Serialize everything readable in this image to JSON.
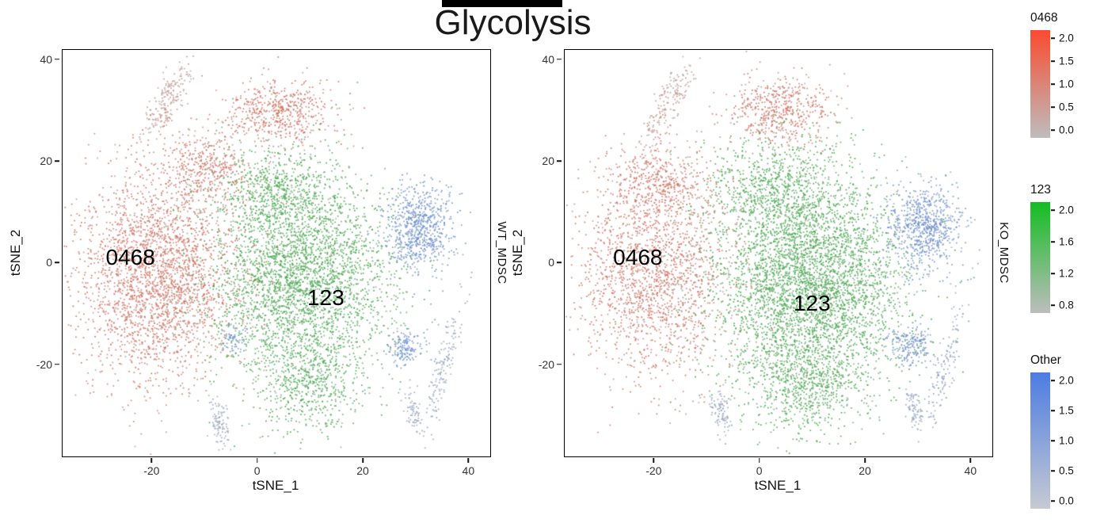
{
  "title": "Glycolysis",
  "point_colors": {
    "red": "#dc5f4b",
    "green": "#2ea636",
    "blue": "#5b87d8",
    "low_gray": "#b4b4b4"
  },
  "chart_data": [
    {
      "type": "scatter",
      "panel_label": "WT_MDSC",
      "xlabel": "tSNE_1",
      "ylabel": "tSNE_2",
      "xlim": [
        -37,
        44
      ],
      "ylim": [
        -38,
        42
      ],
      "xticks": [
        -20,
        0,
        20,
        40
      ],
      "yticks": [
        -20,
        0,
        20,
        40
      ],
      "annotations": [
        {
          "text": "0468",
          "x": -24,
          "y": 1
        },
        {
          "text": "123",
          "x": 13,
          "y": -7
        }
      ],
      "clusters": [
        {
          "name": "0468",
          "color": "#dc5f4b",
          "blobs": [
            {
              "cx": -19,
              "cy": -2,
              "sx": 7.5,
              "sy": 10.5,
              "n": 2500
            },
            {
              "cx": -10,
              "cy": 19,
              "sx": 4,
              "sy": 3.5,
              "n": 400
            },
            {
              "cx": 4,
              "cy": 30,
              "sx": 5,
              "sy": 3.2,
              "n": 550
            },
            {
              "cx": -17.5,
              "cy": 31.5,
              "sx": 1.3,
              "sy": 4.5,
              "angle": -28,
              "n": 200,
              "t": [
                0.1,
                0.5
              ]
            },
            {
              "cx": -19,
              "cy": -2,
              "sx": 11,
              "sy": 14,
              "n": 180,
              "t": [
                0.25,
                0.7
              ]
            }
          ]
        },
        {
          "name": "123",
          "color": "#2ea636",
          "blobs": [
            {
              "cx": 8,
              "cy": -3,
              "sx": 8.5,
              "sy": 10,
              "n": 3200
            },
            {
              "cx": 3,
              "cy": 14,
              "sx": 6,
              "sy": 4.5,
              "n": 600
            },
            {
              "cx": 9,
              "cy": -24,
              "sx": 4.5,
              "sy": 4.5,
              "n": 500
            }
          ]
        },
        {
          "name": "Other",
          "color": "#5b87d8",
          "blobs": [
            {
              "cx": 30.5,
              "cy": 7,
              "sx": 3.2,
              "sy": 4.3,
              "n": 700
            },
            {
              "cx": 28,
              "cy": -16.5,
              "sx": 1.7,
              "sy": 1.8,
              "n": 150
            },
            {
              "cx": 35,
              "cy": -20,
              "sx": 1.0,
              "sy": 6.5,
              "angle": -14,
              "n": 150,
              "t": [
                0.15,
                0.6
              ]
            },
            {
              "cx": 29.5,
              "cy": -29,
              "sx": 0.8,
              "sy": 2.2,
              "angle": 12,
              "n": 70,
              "t": [
                0.15,
                0.5
              ]
            },
            {
              "cx": -5,
              "cy": -15,
              "sx": 1.2,
              "sy": 1.4,
              "n": 60
            },
            {
              "cx": -7.5,
              "cy": -31.5,
              "sx": 0.9,
              "sy": 2.6,
              "angle": 10,
              "n": 100,
              "t": [
                0.1,
                0.45
              ]
            }
          ]
        }
      ]
    },
    {
      "type": "scatter",
      "panel_label": "KO_MDSC",
      "xlabel": "tSNE_1",
      "ylabel": "tSNE_2",
      "xlim": [
        -37,
        44
      ],
      "ylim": [
        -38,
        42
      ],
      "xticks": [
        -20,
        0,
        20,
        40
      ],
      "yticks": [
        -20,
        0,
        20,
        40
      ],
      "annotations": [
        {
          "text": "0468",
          "x": -23,
          "y": 1
        },
        {
          "text": "123",
          "x": 10,
          "y": -8
        }
      ],
      "clusters": [
        {
          "name": "0468",
          "color": "#dc5f4b",
          "blobs": [
            {
              "cx": -20,
              "cy": -2,
              "sx": 7,
              "sy": 10,
              "n": 1600
            },
            {
              "cx": -19,
              "cy": 16,
              "sx": 4.5,
              "sy": 3.5,
              "n": 400
            },
            {
              "cx": 4,
              "cy": 30,
              "sx": 5,
              "sy": 3.2,
              "n": 520
            },
            {
              "cx": -17.5,
              "cy": 31.5,
              "sx": 1.3,
              "sy": 4.5,
              "angle": -28,
              "n": 180,
              "t": [
                0.1,
                0.5
              ]
            },
            {
              "cx": -19,
              "cy": -4,
              "sx": 10,
              "sy": 13,
              "n": 200,
              "t": [
                0.25,
                0.7
              ]
            }
          ]
        },
        {
          "name": "123",
          "color": "#2ea636",
          "blobs": [
            {
              "cx": 9,
              "cy": -4,
              "sx": 9,
              "sy": 11,
              "n": 4200
            },
            {
              "cx": 3,
              "cy": 15,
              "sx": 6.5,
              "sy": 5,
              "n": 700
            },
            {
              "cx": 9,
              "cy": -24,
              "sx": 5,
              "sy": 4.5,
              "n": 550
            }
          ]
        },
        {
          "name": "Other",
          "color": "#5b87d8",
          "blobs": [
            {
              "cx": 31,
              "cy": 7,
              "sx": 3.3,
              "sy": 4.2,
              "n": 720
            },
            {
              "cx": 28.5,
              "cy": -16,
              "sx": 1.9,
              "sy": 2,
              "n": 190
            },
            {
              "cx": 35,
              "cy": -20,
              "sx": 1.0,
              "sy": 6.5,
              "angle": -14,
              "n": 140,
              "t": [
                0.15,
                0.6
              ]
            },
            {
              "cx": 29,
              "cy": -28.5,
              "sx": 0.8,
              "sy": 2.2,
              "angle": 12,
              "n": 80,
              "t": [
                0.15,
                0.5
              ]
            },
            {
              "cx": -7.5,
              "cy": -29,
              "sx": 0.9,
              "sy": 2.4,
              "angle": 10,
              "n": 90,
              "t": [
                0.1,
                0.45
              ]
            }
          ]
        }
      ]
    }
  ],
  "colorbars": [
    {
      "label": "0468",
      "top_color": "#fa4b30",
      "bottom_color": "#bdbdbd",
      "ticks": [
        "2.0",
        "1.5",
        "1.0",
        "0.5",
        "0.0"
      ]
    },
    {
      "label": "123",
      "top_color": "#13bd22",
      "bottom_color": "#bdbdbd",
      "ticks": [
        "2.0",
        "1.6",
        "1.2",
        "0.8"
      ]
    },
    {
      "label": "Other",
      "top_color": "#4d7ce2",
      "bottom_color": "#c6cad2",
      "ticks": [
        "2.0",
        "1.5",
        "1.0",
        "0.5",
        "0.0"
      ]
    }
  ]
}
